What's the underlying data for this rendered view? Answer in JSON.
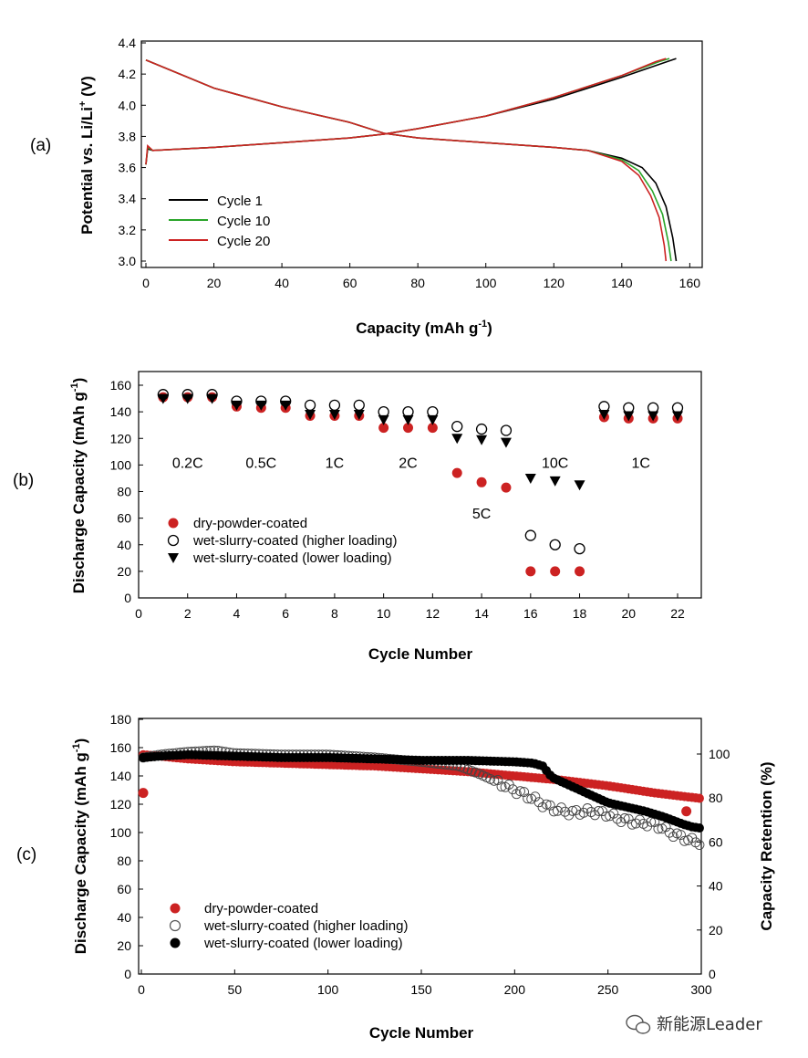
{
  "watermark": "新能源Leader",
  "chart_data": [
    {
      "id": "a",
      "panel_label": "(a)",
      "type": "line",
      "xlabel_main": "Capacity (mAh g",
      "xlabel_sup": "-1",
      "xlabel_end": ")",
      "ylabel_main": "Potential vs. Li/Li",
      "ylabel_sup": "+",
      "ylabel_end": " (V)",
      "xlim": [
        0,
        160
      ],
      "ylim": [
        3.0,
        4.4
      ],
      "xticks": [
        0,
        20,
        40,
        60,
        80,
        100,
        120,
        140,
        160
      ],
      "yticks": [
        "3.0",
        "3.2",
        "3.4",
        "3.6",
        "3.8",
        "4.0",
        "4.2",
        "4.4"
      ],
      "legend": [
        "Cycle 1",
        "Cycle 10",
        "Cycle 20"
      ],
      "series": [
        {
          "name": "Cycle 1",
          "color": "#000000",
          "charge": [
            [
              0,
              3.62
            ],
            [
              0.5,
              3.72
            ],
            [
              2,
              3.71
            ],
            [
              20,
              3.73
            ],
            [
              40,
              3.76
            ],
            [
              60,
              3.79
            ],
            [
              70,
              3.815
            ],
            [
              80,
              3.85
            ],
            [
              100,
              3.93
            ],
            [
              120,
              4.04
            ],
            [
              140,
              4.18
            ],
            [
              152,
              4.27
            ],
            [
              156,
              4.3
            ]
          ],
          "discharge": [
            [
              0,
              4.29
            ],
            [
              20,
              4.11
            ],
            [
              40,
              3.99
            ],
            [
              60,
              3.89
            ],
            [
              70,
              3.82
            ],
            [
              80,
              3.79
            ],
            [
              100,
              3.76
            ],
            [
              120,
              3.73
            ],
            [
              130,
              3.71
            ],
            [
              140,
              3.66
            ],
            [
              146,
              3.6
            ],
            [
              150,
              3.5
            ],
            [
              153,
              3.35
            ],
            [
              155,
              3.15
            ],
            [
              156,
              3.0
            ]
          ]
        },
        {
          "name": "Cycle 10",
          "color": "#2aa52a",
          "charge": [
            [
              0,
              3.62
            ],
            [
              0.5,
              3.73
            ],
            [
              2,
              3.71
            ],
            [
              20,
              3.73
            ],
            [
              40,
              3.76
            ],
            [
              60,
              3.79
            ],
            [
              70,
              3.815
            ],
            [
              80,
              3.85
            ],
            [
              100,
              3.93
            ],
            [
              120,
              4.05
            ],
            [
              140,
              4.19
            ],
            [
              151,
              4.28
            ],
            [
              154,
              4.3
            ]
          ],
          "discharge": [
            [
              0,
              4.29
            ],
            [
              20,
              4.11
            ],
            [
              40,
              3.99
            ],
            [
              60,
              3.89
            ],
            [
              70,
              3.82
            ],
            [
              80,
              3.79
            ],
            [
              100,
              3.76
            ],
            [
              120,
              3.73
            ],
            [
              130,
              3.71
            ],
            [
              140,
              3.65
            ],
            [
              145,
              3.58
            ],
            [
              149,
              3.45
            ],
            [
              152,
              3.3
            ],
            [
              153.7,
              3.12
            ],
            [
              154.5,
              3.0
            ]
          ]
        },
        {
          "name": "Cycle 20",
          "color": "#cc2222",
          "charge": [
            [
              0,
              3.62
            ],
            [
              0.5,
              3.74
            ],
            [
              2,
              3.71
            ],
            [
              20,
              3.73
            ],
            [
              40,
              3.76
            ],
            [
              60,
              3.79
            ],
            [
              70,
              3.815
            ],
            [
              80,
              3.85
            ],
            [
              100,
              3.93
            ],
            [
              120,
              4.05
            ],
            [
              140,
              4.19
            ],
            [
              150,
              4.28
            ],
            [
              153,
              4.3
            ]
          ],
          "discharge": [
            [
              0,
              4.29
            ],
            [
              20,
              4.11
            ],
            [
              40,
              3.99
            ],
            [
              60,
              3.89
            ],
            [
              70,
              3.82
            ],
            [
              80,
              3.79
            ],
            [
              100,
              3.76
            ],
            [
              120,
              3.73
            ],
            [
              130,
              3.71
            ],
            [
              140,
              3.64
            ],
            [
              145,
              3.55
            ],
            [
              148.5,
              3.42
            ],
            [
              151,
              3.28
            ],
            [
              152.5,
              3.1
            ],
            [
              153,
              3.0
            ]
          ]
        }
      ]
    },
    {
      "id": "b",
      "panel_label": "(b)",
      "type": "scatter",
      "xlabel": "Cycle Number",
      "ylabel_main": "Discharge Capacity (mAh g",
      "ylabel_sup": "-1",
      "ylabel_end": ")",
      "xlim": [
        0,
        23
      ],
      "ylim": [
        0,
        165
      ],
      "xticks": [
        0,
        2,
        4,
        6,
        8,
        10,
        12,
        14,
        16,
        18,
        20,
        22
      ],
      "yticks": [
        0,
        20,
        40,
        60,
        80,
        100,
        120,
        140,
        160
      ],
      "rate_labels": [
        {
          "text": "0.2C",
          "x": 2,
          "y": 102
        },
        {
          "text": "0.5C",
          "x": 5,
          "y": 102
        },
        {
          "text": "1C",
          "x": 8,
          "y": 102
        },
        {
          "text": "2C",
          "x": 11,
          "y": 102
        },
        {
          "text": "5C",
          "x": 14,
          "y": 64
        },
        {
          "text": "10C",
          "x": 17,
          "y": 102
        },
        {
          "text": "1C",
          "x": 20.5,
          "y": 102
        }
      ],
      "series": [
        {
          "name": "dry-powder-coated",
          "marker": "filled-circle",
          "color": "#cc2222",
          "x": [
            1,
            2,
            3,
            4,
            5,
            6,
            7,
            8,
            9,
            10,
            11,
            12,
            13,
            14,
            15,
            16,
            17,
            18,
            19,
            20,
            21,
            22
          ],
          "values": [
            151,
            151,
            151,
            144,
            143,
            143,
            137,
            137,
            137,
            128,
            128,
            128,
            94,
            87,
            83,
            20,
            20,
            20,
            136,
            135,
            135,
            135
          ]
        },
        {
          "name": "wet-slurry-coated (higher loading)",
          "marker": "open-circle",
          "color": "#000000",
          "x": [
            1,
            2,
            3,
            4,
            5,
            6,
            7,
            8,
            9,
            10,
            11,
            12,
            13,
            14,
            15,
            16,
            17,
            18,
            19,
            20,
            21,
            22
          ],
          "values": [
            153,
            153,
            153,
            148,
            148,
            148,
            145,
            145,
            145,
            140,
            140,
            140,
            129,
            127,
            126,
            47,
            40,
            37,
            144,
            143,
            143,
            143
          ]
        },
        {
          "name": "wet-slurry-coated (lower loading)",
          "marker": "filled-triangle-down",
          "color": "#000000",
          "x": [
            1,
            2,
            3,
            4,
            5,
            6,
            7,
            8,
            9,
            10,
            11,
            12,
            13,
            14,
            15,
            16,
            17,
            18,
            19,
            20,
            21,
            22
          ],
          "values": [
            150,
            150,
            150,
            145,
            145,
            145,
            138,
            138,
            138,
            134,
            134,
            134,
            120,
            119,
            117,
            90,
            88,
            85,
            138,
            137,
            137,
            137
          ]
        }
      ]
    },
    {
      "id": "c",
      "panel_label": "(c)",
      "type": "scatter",
      "xlabel": "Cycle Number",
      "ylabel_main": "Discharge Capacity (mAh g",
      "ylabel_sup": "-1",
      "ylabel_end": ")",
      "ylabel_right": "Capacity Retention (%)",
      "xlim": [
        0,
        300
      ],
      "ylim": [
        0,
        180
      ],
      "ylim_right": [
        0,
        116
      ],
      "xticks": [
        0,
        50,
        100,
        150,
        200,
        250,
        300
      ],
      "yticks": [
        0,
        20,
        40,
        60,
        80,
        100,
        120,
        140,
        160,
        180
      ],
      "yticks_right": [
        0,
        20,
        40,
        60,
        80,
        100
      ],
      "series": [
        {
          "name": "dry-powder-coated",
          "marker": "filled-circle",
          "color": "#cc2222",
          "x": [
            1,
            10,
            25,
            50,
            75,
            100,
            125,
            150,
            175,
            200,
            225,
            250,
            275,
            300
          ],
          "values": [
            155,
            154,
            152,
            150,
            149,
            148,
            147,
            145,
            143,
            140,
            137,
            133,
            128,
            124
          ],
          "extra_points": [
            {
              "x": 1,
              "y": 128
            },
            {
              "x": 292,
              "y": 115
            }
          ]
        },
        {
          "name": "wet-slurry-coated (higher loading)",
          "marker": "open-circle",
          "color": "#000000",
          "x": [
            1,
            10,
            25,
            40,
            50,
            75,
            100,
            125,
            150,
            170,
            180,
            190,
            200,
            210,
            215,
            220,
            230,
            240,
            250,
            255,
            265,
            275,
            285,
            295,
            300
          ],
          "values": [
            153,
            155,
            157,
            158,
            156,
            155,
            155,
            153,
            150,
            147,
            142,
            136,
            130,
            124,
            120,
            117,
            114,
            115,
            113,
            110,
            107,
            106,
            99,
            94,
            93
          ]
        },
        {
          "name": "wet-slurry-coated (lower loading)",
          "marker": "filled-circle",
          "color": "#000000",
          "x": [
            1,
            10,
            25,
            50,
            75,
            100,
            125,
            150,
            175,
            200,
            210,
            215,
            220,
            230,
            240,
            250,
            260,
            270,
            280,
            290,
            295,
            300
          ],
          "values": [
            153,
            154,
            155,
            154,
            153,
            153,
            152,
            151,
            151,
            150,
            149,
            147,
            139,
            133,
            127,
            121,
            118,
            115,
            111,
            106,
            104,
            103
          ]
        }
      ]
    }
  ]
}
